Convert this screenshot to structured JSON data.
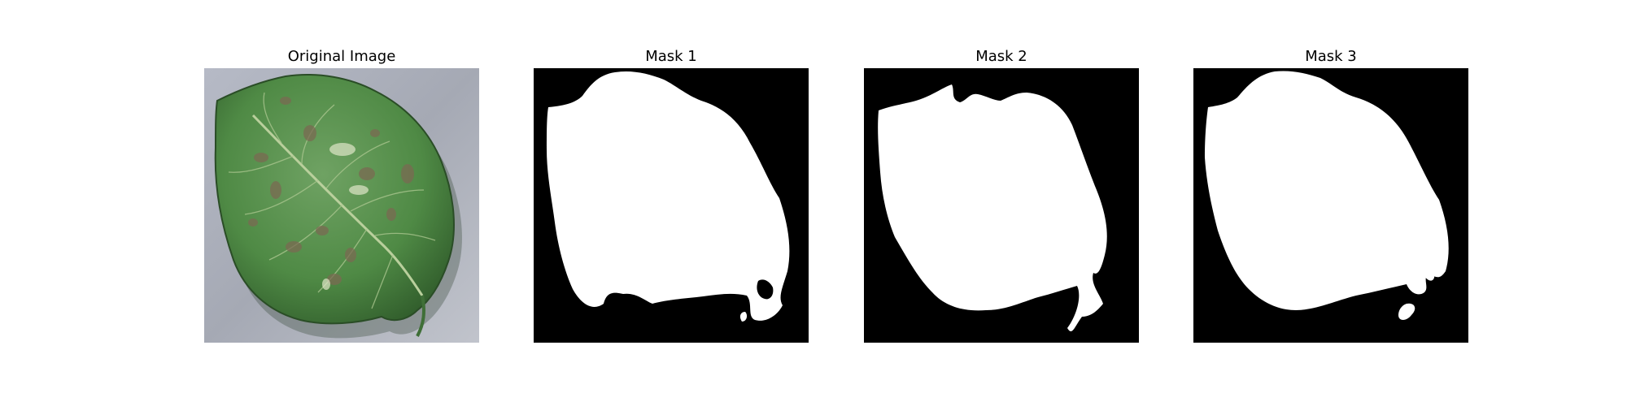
{
  "panels": [
    {
      "title": "Original Image"
    },
    {
      "title": "Mask 1"
    },
    {
      "title": "Mask 2"
    },
    {
      "title": "Mask 3"
    }
  ],
  "colors": {
    "background": "#ffffff",
    "mask_background": "#000000",
    "mask_foreground": "#ffffff",
    "leaf_green": "#4f8a45",
    "leaf_dark": "#2f5a2a",
    "lesion_brown": "#7a6a52",
    "surface_gray": "#a9adb8"
  }
}
